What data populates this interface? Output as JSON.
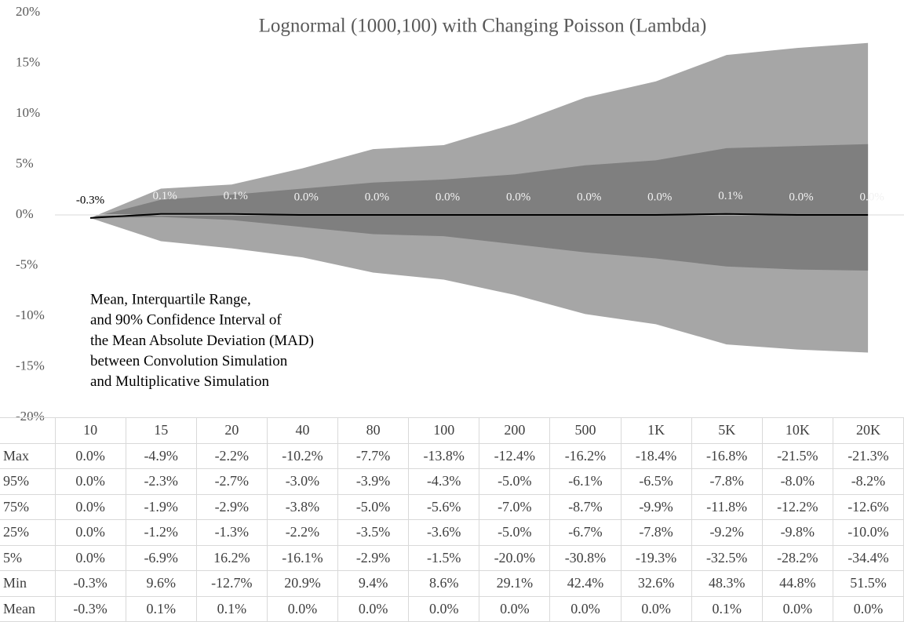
{
  "chart_data": {
    "type": "area",
    "title": "Lognormal (1000,100) with Changing Poisson (Lambda)",
    "categories": [
      "10",
      "15",
      "20",
      "40",
      "80",
      "100",
      "200",
      "500",
      "1K",
      "5K",
      "10K",
      "20K"
    ],
    "series": [
      {
        "color": "#a6a6a6",
        "values": [
          -0.3,
          2.6,
          3.0,
          4.6,
          6.5,
          6.9,
          9.0,
          11.6,
          13.2,
          15.8,
          16.5,
          17.0
        ]
      },
      {
        "color": "#7f7f7f",
        "values": [
          -0.3,
          1.5,
          2.0,
          2.6,
          3.2,
          3.5,
          4.0,
          4.9,
          5.4,
          6.6,
          6.8,
          7.0
        ]
      },
      {
        "color": "#000000",
        "values": [
          -0.3,
          0.1,
          0.1,
          0.0,
          0.0,
          0.0,
          0.0,
          0.0,
          0.0,
          0.1,
          0.0,
          0.0
        ],
        "value_labels": [
          "-0.3%",
          "0.1%",
          "0.1%",
          "0.0%",
          "0.0%",
          "0.0%",
          "0.0%",
          "0.0%",
          "0.0%",
          "0.1%",
          "0.0%",
          "0.0%"
        ]
      },
      {
        "color": "#7f7f7f",
        "values": [
          -0.3,
          -0.2,
          -0.5,
          -1.2,
          -1.9,
          -2.1,
          -2.9,
          -3.7,
          -4.3,
          -5.1,
          -5.4,
          -5.5
        ]
      },
      {
        "color": "#a6a6a6",
        "values": [
          -0.3,
          -2.6,
          -3.3,
          -4.2,
          -5.7,
          -6.4,
          -7.9,
          -9.8,
          -10.8,
          -12.8,
          -13.3,
          -13.6
        ]
      }
    ],
    "ylim": [
      -20,
      20
    ],
    "yticks": [
      {
        "value": 20,
        "label": "20%"
      },
      {
        "value": 15,
        "label": "15%"
      },
      {
        "value": 10,
        "label": "10%"
      },
      {
        "value": 5,
        "label": "5%"
      },
      {
        "value": 0,
        "label": "0%"
      },
      {
        "value": -5,
        "label": "-5%"
      },
      {
        "value": -10,
        "label": "-10%"
      },
      {
        "value": -15,
        "label": "-15%"
      },
      {
        "value": -20,
        "label": "-20%"
      }
    ],
    "annotation": [
      "Mean, Interquartile Range,",
      "and 90% Confidence Interval of",
      "the Mean Absolute Deviation (MAD)",
      "between Convolution Simulation",
      "and Multiplicative Simulation"
    ]
  },
  "table": {
    "rows": [
      [
        "Max",
        "0.0%",
        "-4.9%",
        "-2.2%",
        "-10.2%",
        "-7.7%",
        "-13.8%",
        "-12.4%",
        "-16.2%",
        "-18.4%",
        "-16.8%",
        "-21.5%",
        "-21.3%"
      ],
      [
        "95%",
        "0.0%",
        "-2.3%",
        "-2.7%",
        "-3.0%",
        "-3.9%",
        "-4.3%",
        "-5.0%",
        "-6.1%",
        "-6.5%",
        "-7.8%",
        "-8.0%",
        "-8.2%"
      ],
      [
        "75%",
        "0.0%",
        "-1.9%",
        "-2.9%",
        "-3.8%",
        "-5.0%",
        "-5.6%",
        "-7.0%",
        "-8.7%",
        "-9.9%",
        "-11.8%",
        "-12.2%",
        "-12.6%"
      ],
      [
        "25%",
        "0.0%",
        "-1.2%",
        "-1.3%",
        "-2.2%",
        "-3.5%",
        "-3.6%",
        "-5.0%",
        "-6.7%",
        "-7.8%",
        "-9.2%",
        "-9.8%",
        "-10.0%"
      ],
      [
        "5%",
        "0.0%",
        "-6.9%",
        "16.2%",
        "-16.1%",
        "-2.9%",
        "-1.5%",
        "-20.0%",
        "-30.8%",
        "-19.3%",
        "-32.5%",
        "-28.2%",
        "-34.4%"
      ],
      [
        "Min",
        "-0.3%",
        "9.6%",
        "-12.7%",
        "20.9%",
        "9.4%",
        "8.6%",
        "29.1%",
        "42.4%",
        "32.6%",
        "48.3%",
        "44.8%",
        "51.5%"
      ],
      [
        "Mean",
        "-0.3%",
        "0.1%",
        "0.1%",
        "0.0%",
        "0.0%",
        "0.0%",
        "0.0%",
        "0.0%",
        "0.0%",
        "0.1%",
        "0.0%",
        "0.0%"
      ]
    ]
  }
}
